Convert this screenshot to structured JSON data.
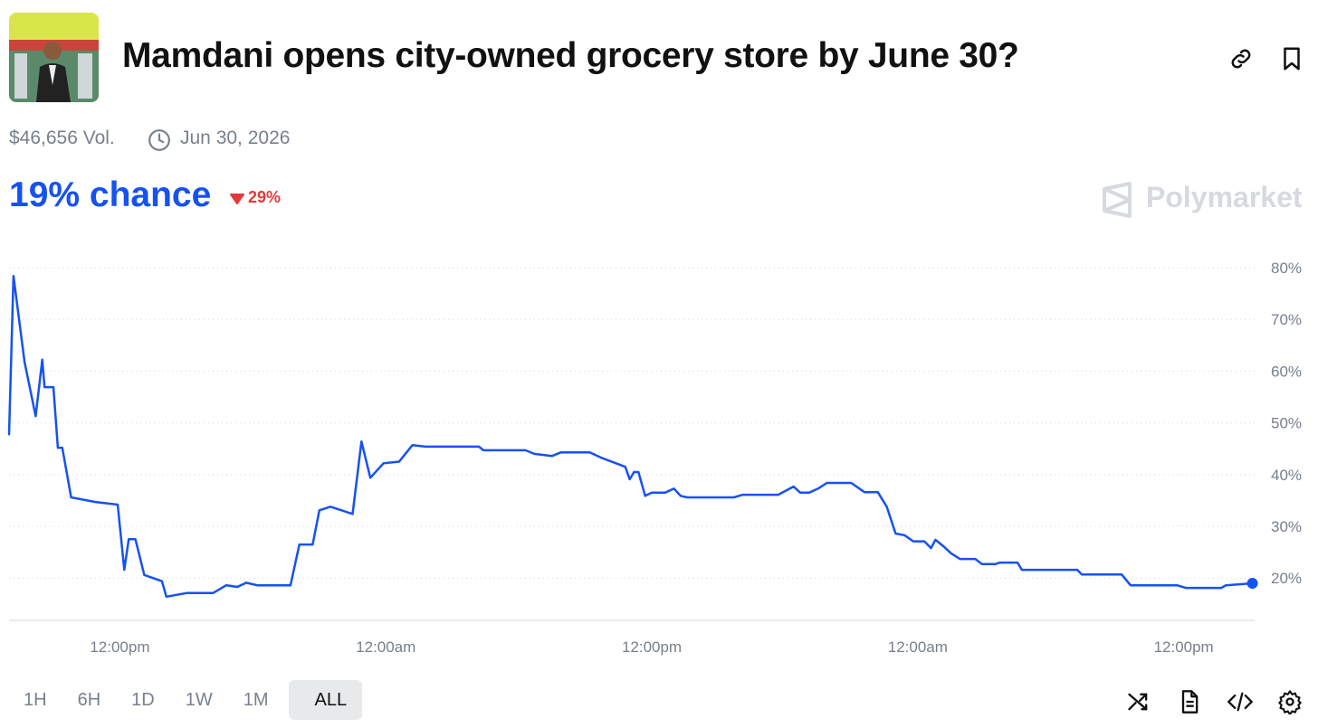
{
  "header": {
    "title": "Mamdani opens city-owned grocery store by June 30?",
    "volume": "$46,656 Vol.",
    "end_date": "Jun 30, 2026",
    "chance": "19% chance",
    "change": "29%",
    "brand": "Polymarket"
  },
  "ranges": [
    "1H",
    "6H",
    "1D",
    "1W",
    "1M",
    "ALL"
  ],
  "selected_range": 5,
  "chart_data": {
    "type": "line",
    "color": "#1652f0",
    "x": [
      7.0,
      7.2,
      7.7,
      8.2,
      8.5,
      8.6,
      9.0,
      9.2,
      9.4,
      9.8,
      10.9,
      11.9,
      12.2,
      12.4,
      12.7,
      13.1,
      13.9,
      14.1,
      15.0,
      16.2,
      16.8,
      17.3,
      17.7,
      18.2,
      19.7,
      20.1,
      20.7,
      21.0,
      21.5,
      22.5,
      22.9,
      23.3,
      23.9,
      24.6,
      25.2,
      25.8,
      28.2,
      28.4,
      30.3,
      30.7,
      31.5,
      31.9,
      33.2,
      33.7,
      34.8,
      35.0,
      35.2,
      35.4,
      35.7,
      36.0,
      36.6,
      37.0,
      37.3,
      37.6,
      39.7,
      40.1,
      41.7,
      42.4,
      42.7,
      43.1,
      43.5,
      43.9,
      45.0,
      45.6,
      46.2,
      46.6,
      47.0,
      47.4,
      47.8,
      48.3,
      48.6,
      48.8,
      49.2,
      49.5,
      49.9,
      50.6,
      50.9,
      51.5,
      51.7,
      52.5,
      52.7,
      55.2,
      55.4,
      57.2,
      57.6,
      59.7,
      60.1,
      61.7,
      61.9,
      63.1
    ],
    "values": [
      47.8,
      78.4,
      61.8,
      51.3,
      62.2,
      56.9,
      56.9,
      45.2,
      45.2,
      35.6,
      34.7,
      34.2,
      21.6,
      27.5,
      27.5,
      20.6,
      19.4,
      16.4,
      17.1,
      17.1,
      18.6,
      18.3,
      19.1,
      18.6,
      18.6,
      26.5,
      26.5,
      33.1,
      33.8,
      32.4,
      46.4,
      39.4,
      42.2,
      42.5,
      45.7,
      45.4,
      45.4,
      44.7,
      44.7,
      44.0,
      43.6,
      44.3,
      44.3,
      43.3,
      41.5,
      39.1,
      40.5,
      40.5,
      35.9,
      36.5,
      36.5,
      37.3,
      35.9,
      35.6,
      35.6,
      36.1,
      36.1,
      37.7,
      36.5,
      36.5,
      37.3,
      38.4,
      38.4,
      36.6,
      36.6,
      33.8,
      28.6,
      28.3,
      27.1,
      27.1,
      25.8,
      27.4,
      26.0,
      24.8,
      23.7,
      23.7,
      22.7,
      22.7,
      23.0,
      23.0,
      21.6,
      21.6,
      20.7,
      20.7,
      18.6,
      18.6,
      18.1,
      18.1,
      18.6,
      19
    ],
    "xlim": [
      7,
      63.2
    ],
    "xticks": [
      {
        "value": 12,
        "label": "12:00pm"
      },
      {
        "value": 24,
        "label": "12:00am"
      },
      {
        "value": 36,
        "label": "12:00pm"
      },
      {
        "value": 48,
        "label": "12:00am"
      },
      {
        "value": 60,
        "label": "12:00pm"
      }
    ],
    "ylim": [
      12,
      80
    ],
    "yticks": [
      {
        "value": 20,
        "label": "20%"
      },
      {
        "value": 30,
        "label": "30%"
      },
      {
        "value": 40,
        "label": "40%"
      },
      {
        "value": 50,
        "label": "50%"
      },
      {
        "value": 60,
        "label": "60%"
      },
      {
        "value": 70,
        "label": "70%"
      },
      {
        "value": 80,
        "label": "80%"
      }
    ],
    "grid": true
  }
}
